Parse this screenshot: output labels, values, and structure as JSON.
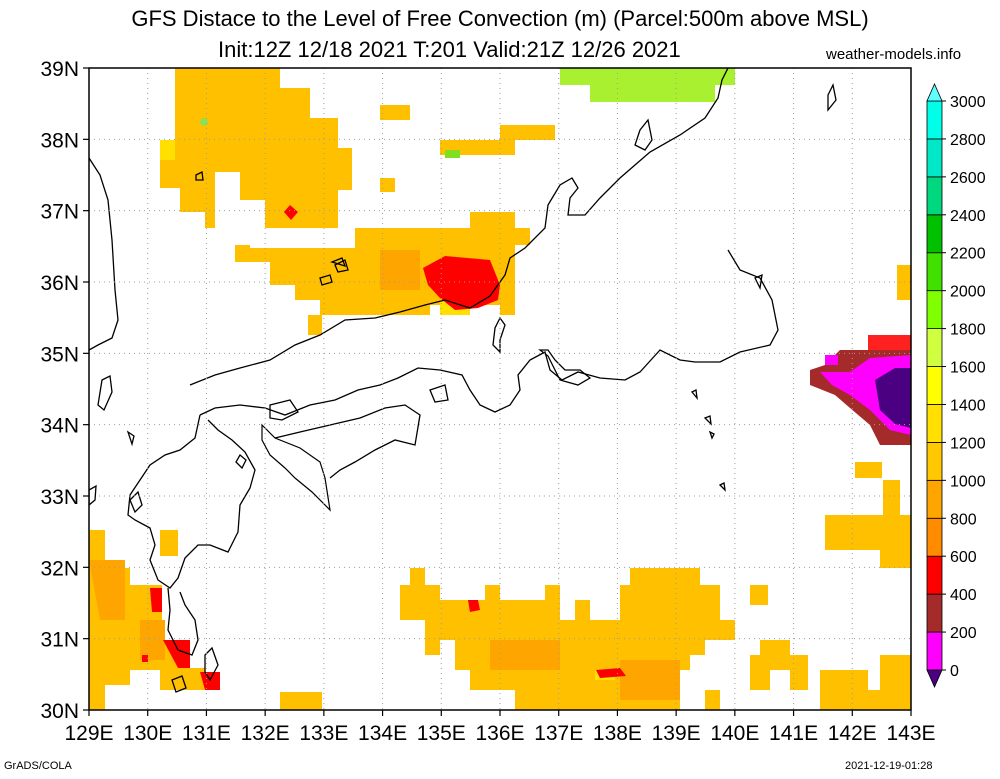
{
  "title": {
    "line1": "GFS Distace to the Level of Free Convection (m) (Parcel:500m above MSL)",
    "line2": "Init:12Z 12/18 2021 T:201 Valid:21Z 12/26 2021",
    "site": "weather-models.info"
  },
  "footer": {
    "left": "GrADS/COLA",
    "right": "2021-12-19-01:28"
  },
  "map": {
    "lon_range": [
      129,
      143
    ],
    "lat_range": [
      30,
      39
    ],
    "lon_labels": [
      "129E",
      "130E",
      "131E",
      "132E",
      "133E",
      "134E",
      "135E",
      "136E",
      "137E",
      "138E",
      "139E",
      "140E",
      "141E",
      "142E",
      "143E"
    ],
    "lat_labels": [
      "30N",
      "31N",
      "32N",
      "33N",
      "34N",
      "35N",
      "36N",
      "37N",
      "38N",
      "39N"
    ],
    "grid": "dotted"
  },
  "colorbar": {
    "levels": [
      "0",
      "200",
      "400",
      "600",
      "800",
      "1000",
      "1200",
      "1400",
      "1600",
      "1800",
      "2000",
      "2200",
      "2400",
      "2600",
      "2800",
      "3000"
    ],
    "colors": [
      "#4b0082",
      "#ff00ff",
      "#a52a2a",
      "#ff0000",
      "#ff8c00",
      "#ffa500",
      "#ffc800",
      "#ffe000",
      "#ffff00",
      "#d0ff40",
      "#80ff00",
      "#40e000",
      "#00c000",
      "#00d880",
      "#00e8c8",
      "#00ffe8",
      "#60ffff"
    ]
  }
}
